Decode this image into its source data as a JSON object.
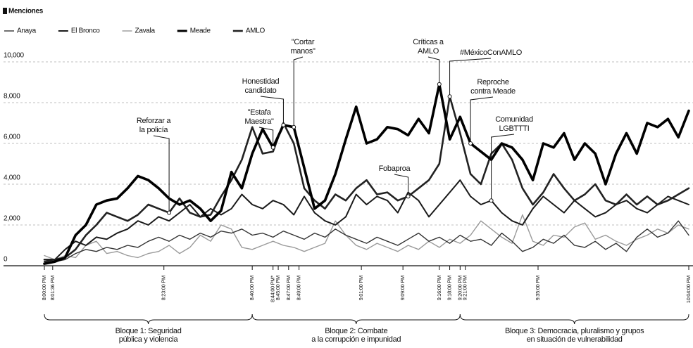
{
  "chart_data": {
    "type": "line",
    "ylabel": "Menciones",
    "xlim": [
      0,
      124
    ],
    "ylim": [
      0,
      11000
    ],
    "yticks": [
      0,
      {
        "value": 2000,
        "label": "2,000"
      },
      {
        "value": 4000,
        "label": "4,000"
      },
      {
        "value": 6000,
        "label": "6,000"
      },
      {
        "value": 8000,
        "label": "8,000"
      },
      {
        "value": 10000,
        "label": "10,000"
      }
    ],
    "xticks": [
      {
        "value": 0,
        "label": "8:00:00 PM"
      },
      {
        "value": 1.6,
        "label": "8:01:36 PM"
      },
      {
        "value": 23,
        "label": "8:23:00 PM"
      },
      {
        "value": 40,
        "label": "8:40:00 PM"
      },
      {
        "value": 44,
        "label": "8:44:00 PM*"
      },
      {
        "value": 45,
        "label": "8:45:00 PM"
      },
      {
        "value": 47,
        "label": "8:47:00 PM"
      },
      {
        "value": 49,
        "label": "8:49:00 PM"
      },
      {
        "value": 61,
        "label": "9:01:00 PM"
      },
      {
        "value": 69,
        "label": "9:09:00 PM"
      },
      {
        "value": 76,
        "label": "9:16:00 PM"
      },
      {
        "value": 78,
        "label": "9:18:00 PM"
      },
      {
        "value": 80,
        "label": "9:20:00 PM"
      },
      {
        "value": 81,
        "label": "9:21:00 PM"
      },
      {
        "value": 95,
        "label": "9:35:00 PM"
      },
      {
        "value": 124,
        "label": "10:04:00 PM"
      }
    ],
    "grid": true,
    "x": [
      0,
      2,
      4,
      6,
      8,
      10,
      12,
      14,
      16,
      18,
      20,
      22,
      24,
      26,
      28,
      30,
      32,
      34,
      36,
      38,
      40,
      42,
      44,
      46,
      48,
      50,
      52,
      54,
      56,
      58,
      60,
      62,
      64,
      66,
      68,
      70,
      72,
      74,
      76,
      78,
      80,
      82,
      84,
      86,
      88,
      90,
      92,
      94,
      96,
      98,
      100,
      102,
      104,
      106,
      108,
      110,
      112,
      114,
      116,
      118,
      120,
      122,
      124
    ],
    "series": [
      {
        "name": "Anaya",
        "color": "#333333",
        "width": 1.4,
        "values": [
          100,
          200,
          300,
          600,
          800,
          700,
          900,
          800,
          1000,
          900,
          1200,
          1400,
          1200,
          1500,
          1300,
          1600,
          1400,
          1700,
          1600,
          1800,
          1500,
          1600,
          1400,
          1700,
          1500,
          1300,
          1600,
          1400,
          1800,
          1500,
          1300,
          1100,
          1400,
          1200,
          1000,
          1300,
          1600,
          1200,
          1400,
          1100,
          1500,
          1200,
          1300,
          1000,
          1600,
          1200,
          700,
          900,
          1300,
          1100,
          1500,
          1000,
          900,
          1200,
          800,
          1100,
          700,
          1400,
          1800,
          1400,
          1600,
          2200,
          1500
        ]
      },
      {
        "name": "El Bronco",
        "color": "#1a1a1a",
        "width": 2,
        "values": [
          200,
          300,
          800,
          1200,
          1000,
          1400,
          1300,
          1600,
          1800,
          2200,
          2000,
          2400,
          2200,
          2600,
          3000,
          2400,
          2800,
          2500,
          2800,
          3500,
          3000,
          2800,
          3200,
          3000,
          2500,
          3400,
          2600,
          2200,
          2000,
          2400,
          3500,
          3000,
          3400,
          3200,
          2600,
          3600,
          3200,
          2400,
          3000,
          3600,
          4200,
          3400,
          3000,
          3200,
          2600,
          2200,
          2000,
          2800,
          3400,
          3000,
          2600,
          3200,
          2800,
          2400,
          2600,
          3000,
          3200,
          2800,
          2600,
          3000,
          3400,
          3200,
          3000
        ]
      },
      {
        "name": "Zavala",
        "color": "#9a9a9a",
        "width": 1.4,
        "values": [
          500,
          300,
          500,
          400,
          1000,
          1200,
          600,
          700,
          500,
          400,
          600,
          700,
          1000,
          600,
          900,
          1500,
          1200,
          2000,
          1800,
          900,
          800,
          1000,
          1200,
          1000,
          900,
          700,
          900,
          1100,
          2200,
          1500,
          1000,
          800,
          1100,
          900,
          700,
          1000,
          800,
          1200,
          900,
          1300,
          1100,
          1500,
          2200,
          1800,
          1400,
          1100,
          2500,
          1200,
          1000,
          1500,
          1400,
          1900,
          2100,
          1300,
          1500,
          1200,
          1000,
          1300,
          1500,
          1800,
          1600,
          2000,
          1800
        ]
      },
      {
        "name": "Meade",
        "color": "#000000",
        "width": 3.6,
        "values": [
          100,
          200,
          400,
          1500,
          2000,
          3000,
          3200,
          3300,
          3800,
          4400,
          4200,
          3800,
          3300,
          3000,
          3200,
          2800,
          2200,
          2700,
          4600,
          3800,
          5500,
          6700,
          5800,
          6900,
          6800,
          4800,
          2800,
          3200,
          4500,
          6200,
          7800,
          6000,
          6200,
          6800,
          6700,
          6400,
          7200,
          6500,
          8900,
          6200,
          7300,
          6000,
          5600,
          5200,
          6000,
          5800,
          5200,
          4200,
          6000,
          5800,
          6500,
          5200,
          6000,
          5500,
          4000,
          5500,
          6500,
          5500,
          7000,
          6800,
          7200,
          6300,
          7600
        ]
      },
      {
        "name": "AMLO",
        "color": "#222222",
        "width": 2.6,
        "values": [
          300,
          300,
          400,
          800,
          1500,
          2000,
          2600,
          2400,
          2200,
          2500,
          3000,
          2800,
          2600,
          3300,
          2600,
          2400,
          2500,
          3400,
          4200,
          5200,
          6800,
          5500,
          5600,
          7000,
          6000,
          3800,
          3200,
          2800,
          3500,
          3200,
          3800,
          4200,
          3500,
          3600,
          3200,
          3400,
          3800,
          4200,
          5000,
          8300,
          6500,
          4500,
          4000,
          5500,
          6000,
          5200,
          3800,
          3000,
          3600,
          4500,
          3800,
          3200,
          3500,
          4000,
          3200,
          3000,
          3500,
          3000,
          3400,
          3000,
          3200,
          3500,
          3800
        ]
      }
    ],
    "annotations": [
      {
        "text": [
          "Reforzar a",
          "la policía"
        ],
        "x": 24,
        "y": 2600
      },
      {
        "text": [
          "Honestidad",
          "candidato"
        ],
        "x": 46,
        "y": 6900
      },
      {
        "text": [
          "\"Estafa",
          "Maestra\""
        ],
        "x": 44,
        "y": 5800
      },
      {
        "text": [
          "\"Cortar",
          "manos\""
        ],
        "x": 48,
        "y": 6800
      },
      {
        "text": [
          "Fobaproa"
        ],
        "x": 70,
        "y": 3400
      },
      {
        "text": [
          "Críticas a",
          "AMLO"
        ],
        "x": 76,
        "y": 8900
      },
      {
        "text": [
          "#MéxicoConAMLO"
        ],
        "x": 78,
        "y": 8300
      },
      {
        "text": [
          "Reproche",
          "contra Meade"
        ],
        "x": 82,
        "y": 6000
      },
      {
        "text": [
          "Comunidad",
          "LGBTTTI"
        ],
        "x": 86,
        "y": 3200
      }
    ],
    "blocks": [
      {
        "label": [
          "Bloque 1: Seguridad",
          "pública y violencia"
        ],
        "start": 0,
        "end": 40
      },
      {
        "label": [
          "Bloque 2: Combate",
          "a la corrupción e impunidad"
        ],
        "start": 40,
        "end": 80
      },
      {
        "label": [
          "Bloque 3: Democracia, pluralismo y grupos",
          "en situación de vulnerabilidad"
        ],
        "start": 80,
        "end": 124
      }
    ]
  }
}
